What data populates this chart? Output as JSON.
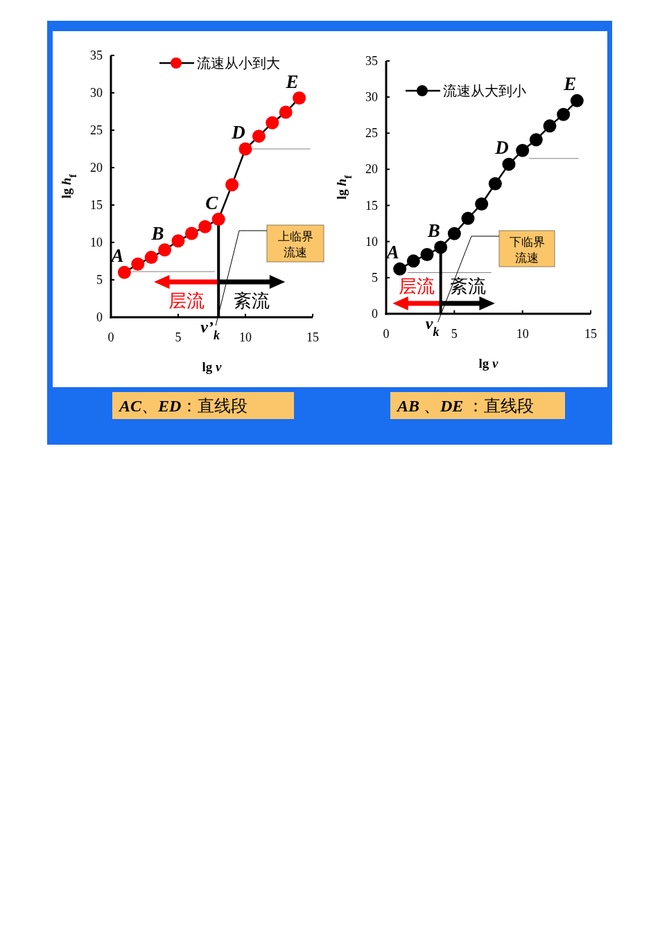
{
  "chart_data": [
    {
      "type": "line",
      "marker": "circle",
      "xlabel": "lg *v*",
      "ylabel": "lg *h*$_{f}$",
      "xlim": [
        0,
        15
      ],
      "ylim": [
        0,
        35
      ],
      "xticks": [
        0,
        5,
        10,
        15
      ],
      "yticks": [
        0,
        5,
        10,
        15,
        20,
        25,
        30,
        35
      ],
      "legend": "top right",
      "x": [
        1,
        2,
        3,
        4,
        5,
        6,
        7,
        8,
        9,
        10,
        11,
        12,
        13,
        14
      ],
      "series": [
        {
          "name": "流速从小到大",
          "color": "#ff0000",
          "values": [
            6.0,
            7.1,
            8.0,
            9.0,
            10.2,
            11.2,
            12.1,
            13.1,
            17.7,
            22.5,
            24.2,
            26.0,
            27.4,
            29.3
          ]
        },
        {
          "type": "line",
          "color": "#808080",
          "marker": "none",
          "x": [
            1.6,
            7.7
          ],
          "values": [
            6.1,
            6.1
          ]
        },
        {
          "type": "line",
          "color": "#808080",
          "marker": "none",
          "x": [
            10.5,
            14.8
          ],
          "values": [
            22.5,
            22.5
          ]
        }
      ],
      "ref_lines": [
        {
          "axis": "x",
          "value": 8,
          "label": "v’$_{k}$",
          "color": "#000000"
        }
      ],
      "annotations": [
        "层流",
        "紊流",
        {
          "text": "A",
          "x": 1,
          "y": 6.0
        },
        {
          "text": "B",
          "x": 4,
          "y": 9.0
        },
        {
          "text": "C",
          "x": 8,
          "y": 13.1
        },
        {
          "text": "D",
          "x": 10,
          "y": 22.5
        },
        {
          "text": "E",
          "x": 14,
          "y": 29.3
        },
        "上临界流速",
        "*AC*、*ED*：直线段"
      ]
    },
    {
      "type": "line",
      "marker": "circle",
      "xlabel": "lg *v*",
      "ylabel": "lg *h*$_{f}$",
      "xlim": [
        0,
        15
      ],
      "ylim": [
        0,
        35
      ],
      "xticks": [
        0,
        5,
        10,
        15
      ],
      "yticks": [
        0,
        5,
        10,
        15,
        20,
        25,
        30,
        35
      ],
      "legend": "top left",
      "x": [
        1,
        2,
        3,
        4,
        5,
        6,
        7,
        8,
        9,
        10,
        11,
        12,
        13,
        14
      ],
      "series": [
        {
          "name": "流速从大到小",
          "color": "#000000",
          "values": [
            6.2,
            7.3,
            8.2,
            9.2,
            11.1,
            13.2,
            15.2,
            18.0,
            20.7,
            22.6,
            24.1,
            26.0,
            27.6,
            29.5
          ]
        },
        {
          "type": "line",
          "color": "#808080",
          "marker": "none",
          "x": [
            1.6,
            7.7
          ],
          "values": [
            5.7,
            5.7
          ]
        },
        {
          "type": "line",
          "color": "#808080",
          "marker": "none",
          "x": [
            10.5,
            14.1
          ],
          "values": [
            21.5,
            21.5
          ]
        }
      ],
      "ref_lines": [
        {
          "axis": "x",
          "value": 4,
          "label": "v$_{k}$",
          "color": "#000000"
        }
      ],
      "annotations": [
        "层流",
        "紊流",
        {
          "text": "A",
          "x": 1,
          "y": 6.2
        },
        {
          "text": "B",
          "x": 4,
          "y": 9.2
        },
        {
          "text": "D",
          "x": 9,
          "y": 20.7
        },
        {
          "text": "E",
          "x": 14,
          "y": 29.5
        },
        "下临界流速",
        "*AB* 、*DE* ：直线段"
      ]
    }
  ]
}
